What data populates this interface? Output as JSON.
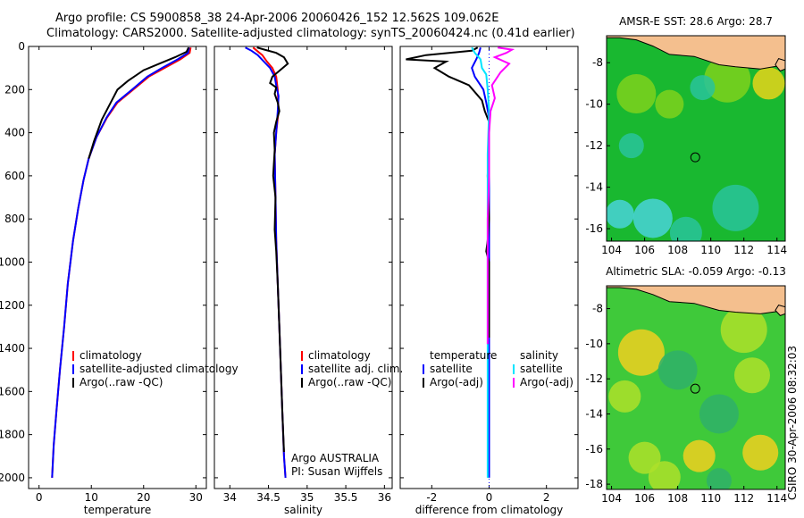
{
  "header": {
    "line1": "Argo profile: CS 5900858_38 24-Apr-2006 20060426_152 12.562S 109.062E",
    "line2": "Climatology: CARS2000. Satellite-adjusted climatology: synTS_20060424.nc (0.41d earlier)"
  },
  "side_label": "CSIRO 30-Apr-2006 08:32:03",
  "colors": {
    "climatology": "#ff0000",
    "satellite": "#0000ff",
    "argo": "#000000",
    "sal_satellite": "#00e5ff",
    "sal_argo": "#ff00ff"
  },
  "chart_data": [
    {
      "type": "line",
      "id": "temperature",
      "xlabel": "temperature",
      "xlim": [
        -2,
        32
      ],
      "ylim": [
        2050,
        0
      ],
      "xticks": [
        0,
        10,
        20,
        30
      ],
      "yticks": [
        0,
        200,
        400,
        600,
        800,
        1000,
        1200,
        1400,
        1600,
        1800,
        2000
      ],
      "legend": [
        "climatology",
        "satellite-adjusted climatology",
        "Argo(..raw -QC)"
      ],
      "series": [
        {
          "name": "climatology",
          "color": "climatology",
          "points": [
            [
              29.0,
              5
            ],
            [
              28.8,
              30
            ],
            [
              27,
              60
            ],
            [
              24,
              100
            ],
            [
              21,
              140
            ],
            [
              18,
              200
            ],
            [
              15,
              260
            ],
            [
              13,
              330
            ],
            [
              11,
              420
            ],
            [
              9.5,
              520
            ],
            [
              8.5,
              620
            ],
            [
              7.5,
              750
            ],
            [
              6.5,
              900
            ],
            [
              5.5,
              1100
            ],
            [
              4.8,
              1300
            ],
            [
              4.0,
              1500
            ],
            [
              3.3,
              1700
            ],
            [
              2.8,
              1850
            ],
            [
              2.5,
              2000
            ]
          ]
        },
        {
          "name": "satellite-adjusted climatology",
          "color": "satellite",
          "points": [
            [
              28.7,
              5
            ],
            [
              28.5,
              30
            ],
            [
              26.5,
              60
            ],
            [
              23.5,
              100
            ],
            [
              20.7,
              140
            ],
            [
              17.8,
              200
            ],
            [
              14.8,
              260
            ],
            [
              12.9,
              330
            ],
            [
              11,
              420
            ],
            [
              9.5,
              520
            ],
            [
              8.5,
              620
            ],
            [
              7.5,
              750
            ],
            [
              6.5,
              900
            ],
            [
              5.5,
              1100
            ],
            [
              4.8,
              1300
            ],
            [
              4.0,
              1500
            ],
            [
              3.3,
              1700
            ],
            [
              2.8,
              1850
            ],
            [
              2.5,
              2000
            ]
          ]
        },
        {
          "name": "Argo(..raw -QC)",
          "color": "argo",
          "points": [
            [
              28.6,
              5
            ],
            [
              28.2,
              25
            ],
            [
              26,
              50
            ],
            [
              23,
              80
            ],
            [
              20,
              110
            ],
            [
              17,
              160
            ],
            [
              15,
              200
            ],
            [
              13.5,
              270
            ],
            [
              12,
              340
            ],
            [
              10.5,
              440
            ],
            [
              9.5,
              520
            ]
          ]
        }
      ]
    },
    {
      "type": "line",
      "id": "salinity",
      "xlabel": "salinity",
      "xlim": [
        33.8,
        36.1
      ],
      "ylim": [
        2050,
        0
      ],
      "xticks": [
        34,
        34.5,
        35,
        35.5,
        36
      ],
      "yticks": [
        0,
        200,
        400,
        600,
        800,
        1000,
        1200,
        1400,
        1600,
        1800,
        2000
      ],
      "legend": [
        "climatology",
        "satellite adj. clim.",
        "Argo(..raw -QC)"
      ],
      "annotation": [
        "Argo AUSTRALIA",
        "PI: Susan Wijffels"
      ],
      "series": [
        {
          "name": "climatology",
          "color": "climatology",
          "points": [
            [
              34.3,
              5
            ],
            [
              34.35,
              20
            ],
            [
              34.42,
              40
            ],
            [
              34.48,
              70
            ],
            [
              34.55,
              100
            ],
            [
              34.6,
              140
            ],
            [
              34.62,
              200
            ],
            [
              34.63,
              300
            ],
            [
              34.6,
              400
            ],
            [
              34.58,
              500
            ],
            [
              34.59,
              700
            ],
            [
              34.6,
              900
            ],
            [
              34.62,
              1100
            ],
            [
              34.64,
              1300
            ],
            [
              34.66,
              1500
            ],
            [
              34.68,
              1700
            ],
            [
              34.7,
              1900
            ],
            [
              34.72,
              2000
            ]
          ]
        },
        {
          "name": "satellite adj. clim.",
          "color": "satellite",
          "points": [
            [
              34.2,
              5
            ],
            [
              34.28,
              20
            ],
            [
              34.36,
              40
            ],
            [
              34.44,
              70
            ],
            [
              34.52,
              100
            ],
            [
              34.58,
              140
            ],
            [
              34.6,
              180
            ],
            [
              34.63,
              230
            ],
            [
              34.62,
              300
            ],
            [
              34.6,
              400
            ],
            [
              34.58,
              500
            ],
            [
              34.59,
              700
            ],
            [
              34.6,
              900
            ],
            [
              34.62,
              1100
            ],
            [
              34.64,
              1300
            ],
            [
              34.66,
              1500
            ],
            [
              34.68,
              1700
            ],
            [
              34.7,
              1900
            ],
            [
              34.72,
              2000
            ]
          ]
        },
        {
          "name": "Argo(..raw -QC)",
          "color": "argo",
          "points": [
            [
              34.35,
              5
            ],
            [
              34.45,
              15
            ],
            [
              34.6,
              30
            ],
            [
              34.7,
              50
            ],
            [
              34.75,
              80
            ],
            [
              34.65,
              110
            ],
            [
              34.55,
              140
            ],
            [
              34.52,
              170
            ],
            [
              34.6,
              190
            ],
            [
              34.58,
              220
            ],
            [
              34.62,
              260
            ],
            [
              34.64,
              300
            ],
            [
              34.6,
              350
            ],
            [
              34.57,
              400
            ],
            [
              34.58,
              480
            ],
            [
              34.56,
              600
            ],
            [
              34.59,
              700
            ],
            [
              34.58,
              850
            ],
            [
              34.6,
              950
            ],
            [
              34.62,
              1100
            ],
            [
              34.64,
              1300
            ],
            [
              34.66,
              1500
            ],
            [
              34.68,
              1700
            ],
            [
              34.7,
              1880
            ]
          ]
        }
      ]
    },
    {
      "type": "line",
      "id": "difference",
      "xlabel": "difference from climatology",
      "xlim": [
        -3.1,
        3.1
      ],
      "ylim": [
        2050,
        0
      ],
      "xticks": [
        -2,
        0,
        2
      ],
      "yticks": [
        0,
        200,
        400,
        600,
        800,
        1000,
        1200,
        1400,
        1600,
        1800,
        2000
      ],
      "legend_temperature": [
        "temperature",
        "satellite",
        "Argo(-adj)"
      ],
      "legend_salinity": [
        "salinity",
        "satellite",
        "Argo(-adj)"
      ],
      "series": [
        {
          "name": "temperature satellite",
          "color": "satellite",
          "points": [
            [
              -0.3,
              5
            ],
            [
              -0.35,
              30
            ],
            [
              -0.45,
              60
            ],
            [
              -0.6,
              100
            ],
            [
              -0.5,
              140
            ],
            [
              -0.2,
              200
            ],
            [
              -0.1,
              260
            ],
            [
              0,
              330
            ],
            [
              0,
              600
            ],
            [
              0,
              2000
            ]
          ]
        },
        {
          "name": "temperature Argo(-adj)",
          "color": "argo",
          "points": [
            [
              -0.4,
              5
            ],
            [
              -0.6,
              20
            ],
            [
              -2.2,
              40
            ],
            [
              -2.9,
              60
            ],
            [
              -1.5,
              70
            ],
            [
              -1.9,
              100
            ],
            [
              -1.4,
              140
            ],
            [
              -0.7,
              180
            ],
            [
              -0.25,
              250
            ],
            [
              -0.15,
              300
            ],
            [
              0,
              350
            ],
            [
              0,
              400
            ],
            [
              -0.05,
              600
            ],
            [
              0,
              800
            ],
            [
              -0.05,
              900
            ],
            [
              -0.1,
              950
            ],
            [
              0,
              1000
            ],
            [
              0,
              1200
            ],
            [
              0,
              1350
            ]
          ]
        },
        {
          "name": "salinity satellite",
          "color": "sal_satellite",
          "points": [
            [
              -0.6,
              5
            ],
            [
              -0.5,
              30
            ],
            [
              -0.3,
              60
            ],
            [
              -0.25,
              100
            ],
            [
              -0.1,
              130
            ],
            [
              -0.05,
              200
            ],
            [
              0,
              300
            ],
            [
              -0.05,
              500
            ],
            [
              -0.05,
              800
            ],
            [
              -0.05,
              1100
            ],
            [
              -0.05,
              1500
            ],
            [
              -0.05,
              2000
            ]
          ]
        },
        {
          "name": "salinity Argo(-adj)",
          "color": "sal_argo",
          "points": [
            [
              0.3,
              5
            ],
            [
              0.8,
              15
            ],
            [
              0.6,
              30
            ],
            [
              0.2,
              50
            ],
            [
              0.7,
              80
            ],
            [
              0.4,
              120
            ],
            [
              0.1,
              180
            ],
            [
              0.2,
              240
            ],
            [
              0.05,
              300
            ],
            [
              0,
              400
            ],
            [
              0,
              600
            ],
            [
              -0.05,
              800
            ],
            [
              -0.05,
              1000
            ],
            [
              -0.05,
              1200
            ],
            [
              -0.05,
              1380
            ]
          ]
        }
      ]
    },
    {
      "type": "heatmap",
      "id": "sst_map",
      "title": "AMSR-E SST: 28.6 Argo: 28.7",
      "xlim": [
        103.7,
        114.5
      ],
      "ylim": [
        -16.6,
        -6.7
      ],
      "xticks": [
        104,
        106,
        108,
        110,
        112,
        114
      ],
      "yticks": [
        -8,
        -10,
        -12,
        -14,
        -16
      ],
      "argo_position": [
        109.06,
        -12.56
      ],
      "land_color": "#f4bf8e",
      "palette": {
        "sea": "#19b830",
        "warm": "#7fd11c",
        "hot": "#e8d31a",
        "cool": "#29c39b",
        "cold": "#49d2d8"
      }
    },
    {
      "type": "heatmap",
      "id": "sla_map",
      "title": "Altimetric SLA: -0.059 Argo: -0.13",
      "xlim": [
        103.7,
        114.5
      ],
      "ylim": [
        -18.3,
        -6.7
      ],
      "xticks": [
        104,
        106,
        108,
        110,
        112,
        114
      ],
      "yticks": [
        -8,
        -10,
        -12,
        -14,
        -16,
        -18
      ],
      "argo_position": [
        109.06,
        -12.56
      ],
      "land_color": "#f4bf8e",
      "palette": {
        "sea": "#3fc93a",
        "warm": "#aee02a",
        "hot": "#f0d020",
        "cool": "#2fb06a"
      }
    }
  ]
}
